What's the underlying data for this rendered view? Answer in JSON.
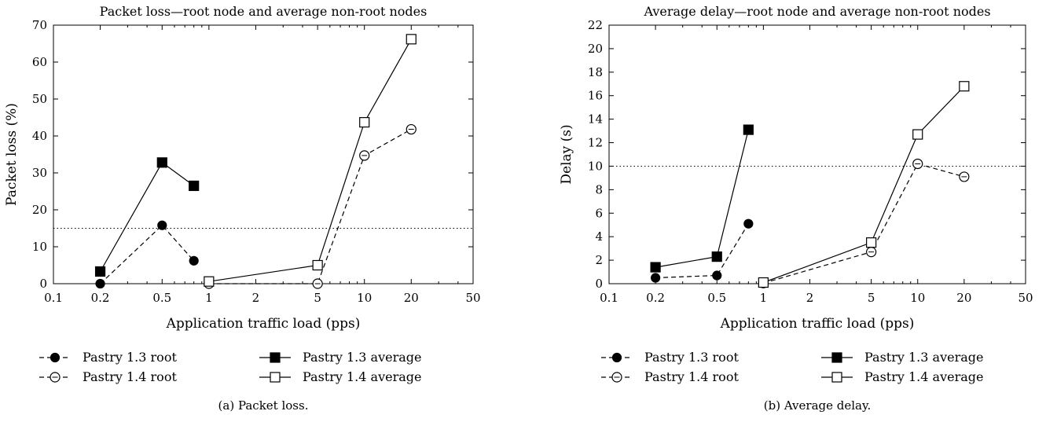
{
  "chart_data": [
    {
      "type": "line",
      "title": "Packet loss—root node and average non-root nodes",
      "xlabel": "Application traffic load (pps)",
      "ylabel": "Packet loss (%)",
      "xscale": "log",
      "xlim": [
        0.1,
        50
      ],
      "ylim": [
        0,
        70
      ],
      "xticks": [
        0.1,
        0.2,
        0.5,
        1,
        2,
        5,
        10,
        20,
        50
      ],
      "xtick_labels": [
        "0.1",
        "0.2",
        "0.5",
        "1",
        "2",
        "5",
        "10",
        "20",
        "50"
      ],
      "yticks": [
        0,
        10,
        20,
        30,
        40,
        50,
        60,
        70
      ],
      "ytick_labels": [
        "0",
        "10",
        "20",
        "30",
        "40",
        "50",
        "60",
        "70"
      ],
      "reference_line": 15,
      "grid": false,
      "legend_position": "below",
      "caption": "(a) Packet loss.",
      "series": [
        {
          "name": "Pastry 1.3 root",
          "marker": "filled-circle",
          "line": "dashed",
          "x": [
            0.2,
            0.5,
            0.8
          ],
          "y": [
            0,
            15.8,
            6.2
          ]
        },
        {
          "name": "Pastry 1.3 average",
          "marker": "filled-square",
          "line": "solid",
          "x": [
            0.2,
            0.5,
            0.8
          ],
          "y": [
            3.3,
            32.8,
            26.5
          ]
        },
        {
          "name": "Pastry 1.4 root",
          "marker": "open-circle",
          "line": "dashed",
          "x": [
            1,
            5,
            10,
            20
          ],
          "y": [
            0,
            0,
            34.7,
            41.8
          ]
        },
        {
          "name": "Pastry 1.4 average",
          "marker": "open-square",
          "line": "solid",
          "x": [
            1,
            5,
            10,
            20
          ],
          "y": [
            0.6,
            5.0,
            43.7,
            66.2
          ]
        }
      ]
    },
    {
      "type": "line",
      "title": "Average delay—root node and average non-root nodes",
      "xlabel": "Application traffic load (pps)",
      "ylabel": "Delay (s)",
      "xscale": "log",
      "xlim": [
        0.1,
        50
      ],
      "ylim": [
        0,
        22
      ],
      "xticks": [
        0.1,
        0.2,
        0.5,
        1,
        2,
        5,
        10,
        20,
        50
      ],
      "xtick_labels": [
        "0.1",
        "0.2",
        "0.5",
        "1",
        "2",
        "5",
        "10",
        "20",
        "50"
      ],
      "yticks": [
        0,
        2,
        4,
        6,
        8,
        10,
        12,
        14,
        16,
        18,
        20,
        22
      ],
      "ytick_labels": [
        "0",
        "2",
        "4",
        "6",
        "8",
        "10",
        "12",
        "14",
        "16",
        "18",
        "20",
        "22"
      ],
      "reference_line": 10,
      "grid": false,
      "legend_position": "below",
      "caption": "(b) Average delay.",
      "series": [
        {
          "name": "Pastry 1.3 root",
          "marker": "filled-circle",
          "line": "dashed",
          "x": [
            0.2,
            0.5,
            0.8
          ],
          "y": [
            0.5,
            0.7,
            5.1
          ]
        },
        {
          "name": "Pastry 1.3 average",
          "marker": "filled-square",
          "line": "solid",
          "x": [
            0.2,
            0.5,
            0.8
          ],
          "y": [
            1.4,
            2.3,
            13.1
          ]
        },
        {
          "name": "Pastry 1.4 root",
          "marker": "open-circle",
          "line": "dashed",
          "x": [
            1,
            5,
            10,
            20
          ],
          "y": [
            0.05,
            2.7,
            10.2,
            9.1
          ]
        },
        {
          "name": "Pastry 1.4 average",
          "marker": "open-square",
          "line": "solid",
          "x": [
            1,
            5,
            10,
            20
          ],
          "y": [
            0.1,
            3.5,
            12.7,
            16.8
          ]
        }
      ]
    }
  ]
}
